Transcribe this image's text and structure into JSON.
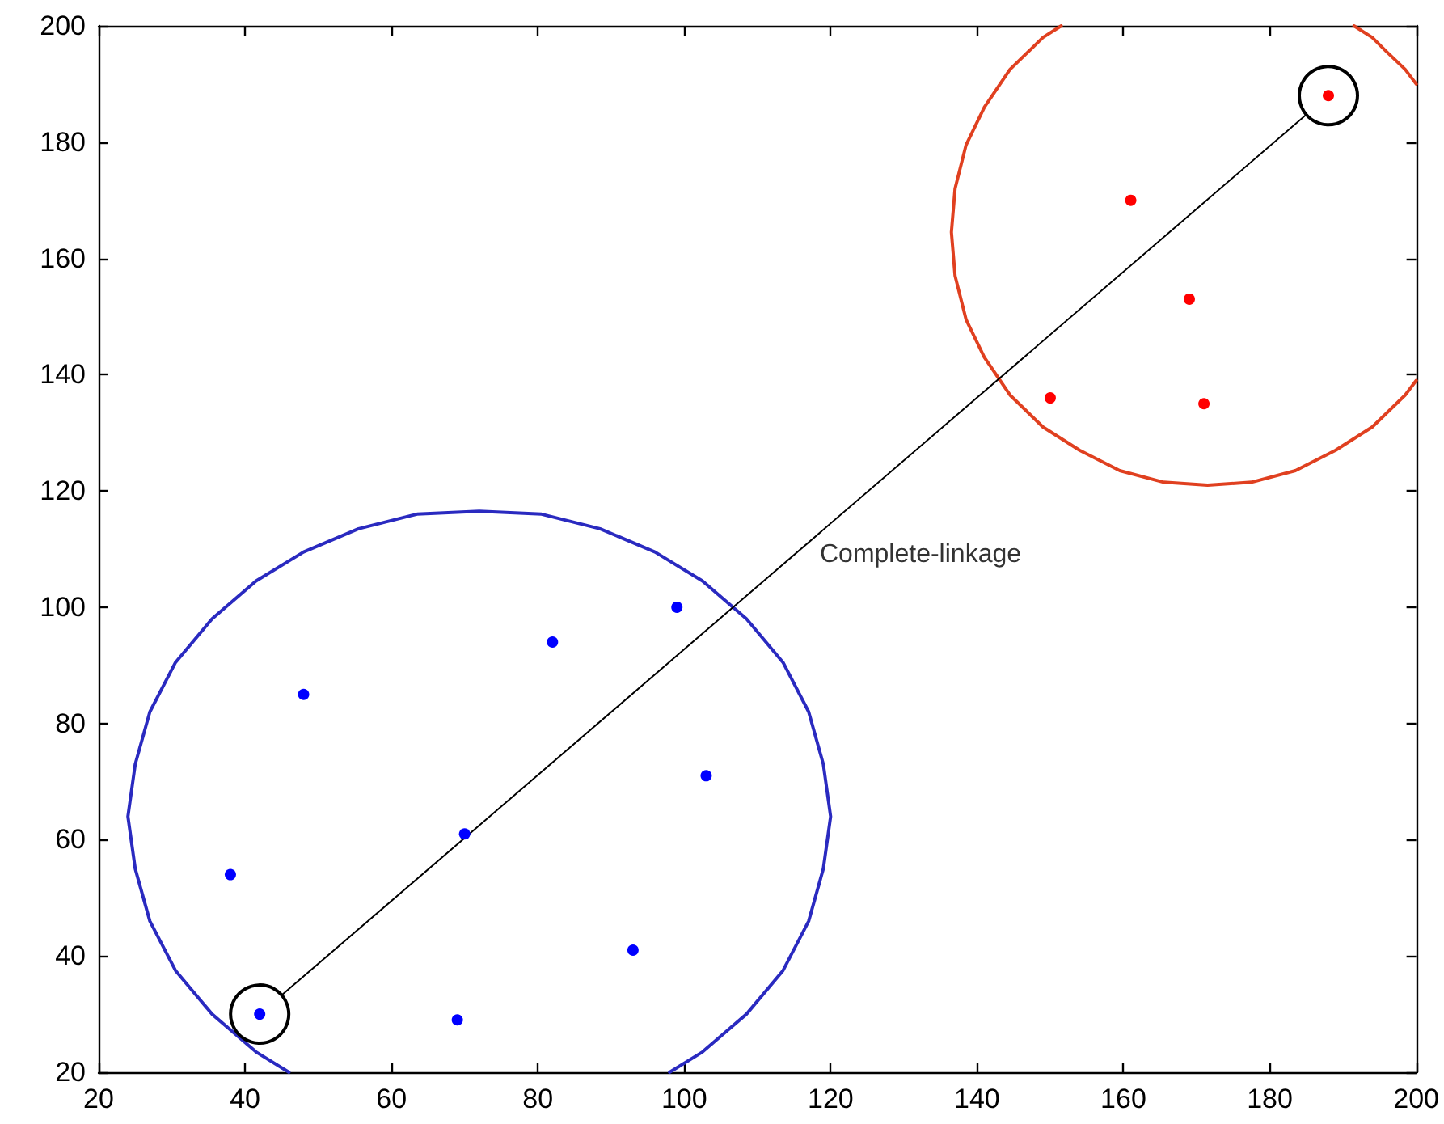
{
  "chart_data": {
    "type": "scatter",
    "marker": "circle",
    "series": [
      {
        "color": "#0000ff",
        "x": [
          48,
          82,
          99,
          103,
          70,
          38,
          93,
          69,
          42
        ],
        "values": [
          85,
          94,
          100,
          71,
          61,
          54,
          41,
          29,
          30
        ]
      },
      {
        "color": "#ff0000",
        "x": [
          188,
          161,
          169,
          150,
          171
        ],
        "values": [
          188,
          170,
          153,
          136,
          135
        ]
      },
      {
        "type": "line",
        "color": "#2a2ac0",
        "marker": "none",
        "x": [
          98,
          102.5,
          108.5,
          113.5,
          117,
          119,
          120,
          119,
          117,
          113.5,
          108.5,
          102.5,
          96,
          88.5,
          80.5,
          72,
          63.5,
          55.5,
          48,
          41.5,
          35.5,
          30.5,
          27,
          25,
          24,
          25,
          27,
          30.5,
          35.5,
          41.5,
          46
        ],
        "values": [
          20,
          23.5,
          30,
          37.5,
          46,
          55,
          64,
          73,
          82,
          90.5,
          98,
          104.5,
          109.5,
          113.5,
          116,
          116.5,
          116,
          113.5,
          109.5,
          104.5,
          98,
          90.5,
          82,
          73,
          64,
          55,
          46,
          37.5,
          30,
          23.5,
          20
        ]
      },
      {
        "type": "line",
        "color": "#e04020",
        "marker": "none",
        "x": [
          151.5,
          149,
          144.5,
          141,
          138.5,
          137,
          136.5,
          137,
          138.5,
          141,
          144.5,
          149,
          154,
          159.5,
          165.5,
          171.5,
          177.5,
          183.5,
          189,
          194,
          198.5,
          200
        ],
        "values": [
          200,
          198,
          192.5,
          186,
          179.5,
          172,
          164.5,
          157,
          149.5,
          143,
          136.5,
          131,
          127,
          123.5,
          121.5,
          121,
          121.5,
          123.5,
          127,
          131,
          136.5,
          139
        ]
      },
      {
        "type": "line",
        "color": "#e04020",
        "marker": "none",
        "x": [
          200,
          198.5,
          196,
          194,
          191.5
        ],
        "values": [
          190,
          192.5,
          195.5,
          198,
          200
        ]
      },
      {
        "type": "line",
        "color": "#000000",
        "marker": "circle",
        "x": [
          42,
          188
        ],
        "values": [
          30,
          188
        ]
      }
    ],
    "annotations": [
      "Complete-linkage"
    ],
    "xlim": [
      20,
      200
    ],
    "ylim": [
      20,
      200
    ],
    "xticks": [
      20,
      40,
      60,
      80,
      100,
      120,
      140,
      160,
      180,
      200
    ],
    "yticks": [
      20,
      40,
      60,
      80,
      100,
      120,
      140,
      160,
      180,
      200
    ]
  }
}
